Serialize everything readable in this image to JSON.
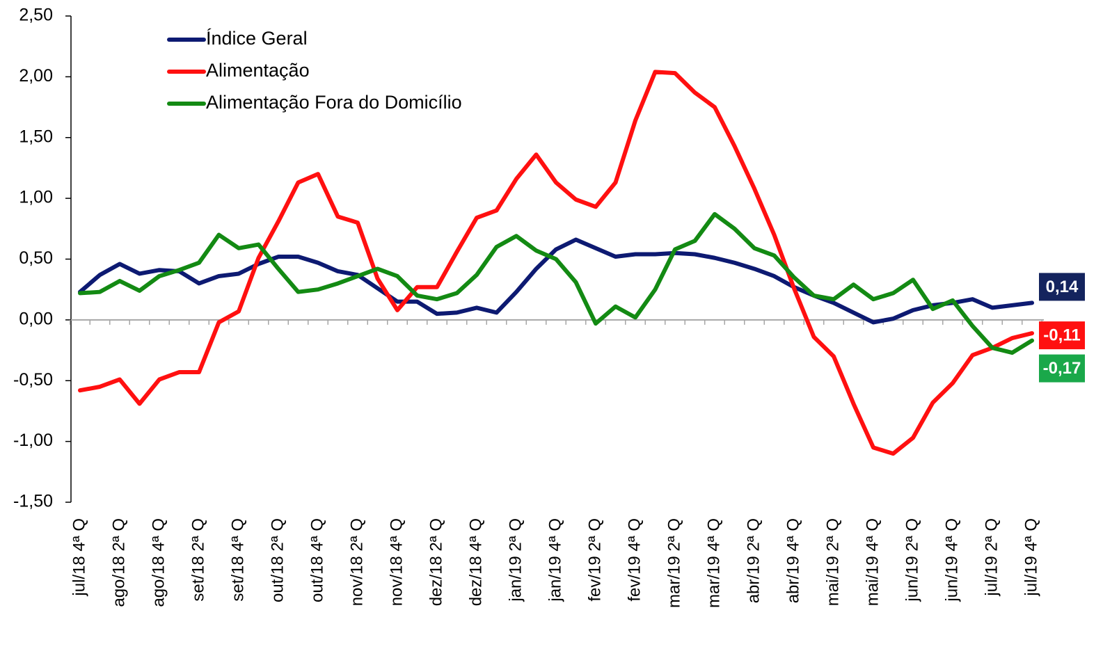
{
  "chart_data": {
    "type": "line",
    "categories": [
      "jul/18 4ª Q",
      null,
      "ago/18 2ª Q",
      null,
      "ago/18 4ª Q",
      null,
      "set/18 2ª Q",
      null,
      "set/18 4ª Q",
      null,
      "out/18 2ª Q",
      null,
      "out/18 4ª Q",
      null,
      "nov/18 2ª Q",
      null,
      "nov/18 4ª Q",
      null,
      "dez/18 2ª Q",
      null,
      "dez/18 4ª Q",
      null,
      "jan/19 2ª Q",
      null,
      "jan/19 4ª Q",
      null,
      "fev/19 2ª Q",
      null,
      "fev/19 4ª Q",
      null,
      "mar/19 2ª Q",
      null,
      "mar/19 4ª Q",
      null,
      "abr/19 2ª Q",
      null,
      "abr/19 4ª Q",
      null,
      "mai/19 2ª Q",
      null,
      "mai/19 4ª Q",
      null,
      "jun/19 2ª Q",
      null,
      "jun/19 4ª Q",
      null,
      "jul/19 2ª Q",
      null,
      "jul/19 4ª Q"
    ],
    "series": [
      {
        "name": "Índice Geral",
        "color": "#0d1a72",
        "label_color": "#14245e",
        "values": [
          0.23,
          0.37,
          0.46,
          0.38,
          0.41,
          0.4,
          0.3,
          0.36,
          0.38,
          0.46,
          0.52,
          0.52,
          0.47,
          0.4,
          0.37,
          0.26,
          0.15,
          0.15,
          0.05,
          0.06,
          0.1,
          0.06,
          0.23,
          0.42,
          0.58,
          0.66,
          0.59,
          0.52,
          0.54,
          0.54,
          0.55,
          0.54,
          0.51,
          0.47,
          0.42,
          0.36,
          0.27,
          0.2,
          0.14,
          0.06,
          -0.02,
          0.01,
          0.08,
          0.12,
          0.14,
          0.17,
          0.1,
          0.12,
          0.14
        ],
        "value_labels": [
          null,
          null,
          null,
          null,
          null,
          null,
          null,
          null,
          null,
          null,
          null,
          null,
          null,
          null,
          null,
          null,
          null,
          null,
          null,
          null,
          null,
          null,
          null,
          null,
          null,
          null,
          null,
          null,
          null,
          null,
          null,
          null,
          null,
          null,
          null,
          null,
          null,
          null,
          null,
          null,
          null,
          null,
          null,
          null,
          null,
          null,
          null,
          null,
          "0,14"
        ]
      },
      {
        "name": "Alimentação",
        "color": "#ff1010",
        "label_color": "#ff1010",
        "values": [
          -0.58,
          -0.55,
          -0.49,
          -0.69,
          -0.49,
          -0.43,
          -0.43,
          -0.02,
          0.07,
          0.51,
          0.81,
          1.13,
          1.2,
          0.85,
          0.8,
          0.34,
          0.08,
          0.27,
          0.27,
          0.56,
          0.84,
          0.9,
          1.16,
          1.36,
          1.13,
          0.99,
          0.93,
          1.13,
          1.64,
          2.04,
          2.03,
          1.87,
          1.75,
          1.43,
          1.08,
          0.7,
          0.26,
          -0.14,
          -0.3,
          -0.69,
          -1.05,
          -1.1,
          -0.97,
          -0.68,
          -0.52,
          -0.29,
          -0.23,
          -0.15,
          -0.11
        ],
        "value_labels": [
          null,
          null,
          null,
          null,
          null,
          null,
          null,
          null,
          null,
          null,
          null,
          null,
          null,
          null,
          null,
          null,
          null,
          null,
          null,
          null,
          null,
          null,
          null,
          null,
          null,
          null,
          null,
          null,
          null,
          null,
          null,
          null,
          null,
          null,
          null,
          null,
          null,
          null,
          null,
          null,
          null,
          null,
          null,
          null,
          null,
          null,
          null,
          null,
          "-0,11"
        ]
      },
      {
        "name": "Alimentação Fora do Domicílio",
        "color": "#138a13",
        "label_color": "#1aa84a",
        "values": [
          0.22,
          0.23,
          0.32,
          0.24,
          0.36,
          0.41,
          0.47,
          0.7,
          0.59,
          0.62,
          0.42,
          0.23,
          0.25,
          0.3,
          0.36,
          0.42,
          0.36,
          0.2,
          0.17,
          0.22,
          0.37,
          0.6,
          0.69,
          0.57,
          0.5,
          0.31,
          -0.03,
          0.11,
          0.02,
          0.25,
          0.58,
          0.65,
          0.87,
          0.75,
          0.59,
          0.53,
          0.35,
          0.2,
          0.17,
          0.29,
          0.17,
          0.22,
          0.33,
          0.09,
          0.16,
          -0.05,
          -0.23,
          -0.27,
          -0.17
        ],
        "value_labels": [
          null,
          null,
          null,
          null,
          null,
          null,
          null,
          null,
          null,
          null,
          null,
          null,
          null,
          null,
          null,
          null,
          null,
          null,
          null,
          null,
          null,
          null,
          null,
          null,
          null,
          null,
          null,
          null,
          null,
          null,
          null,
          null,
          null,
          null,
          null,
          null,
          null,
          null,
          null,
          null,
          null,
          null,
          null,
          null,
          null,
          null,
          null,
          null,
          "-0,17"
        ]
      }
    ],
    "ylim": [
      -1.5,
      2.5
    ],
    "yticks": [
      {
        "value": -1.5,
        "label": "-1,50"
      },
      {
        "value": -1,
        "label": "-1,00"
      },
      {
        "value": -0.5,
        "label": "-0,50"
      },
      {
        "value": 0,
        "label": "0,00"
      },
      {
        "value": 0.5,
        "label": "0,50"
      },
      {
        "value": 1,
        "label": "1,00"
      },
      {
        "value": 1.5,
        "label": "1,50"
      },
      {
        "value": 2,
        "label": "2,00"
      },
      {
        "value": 2.5,
        "label": "2,50"
      }
    ],
    "legend": "upper left",
    "grid": false
  }
}
